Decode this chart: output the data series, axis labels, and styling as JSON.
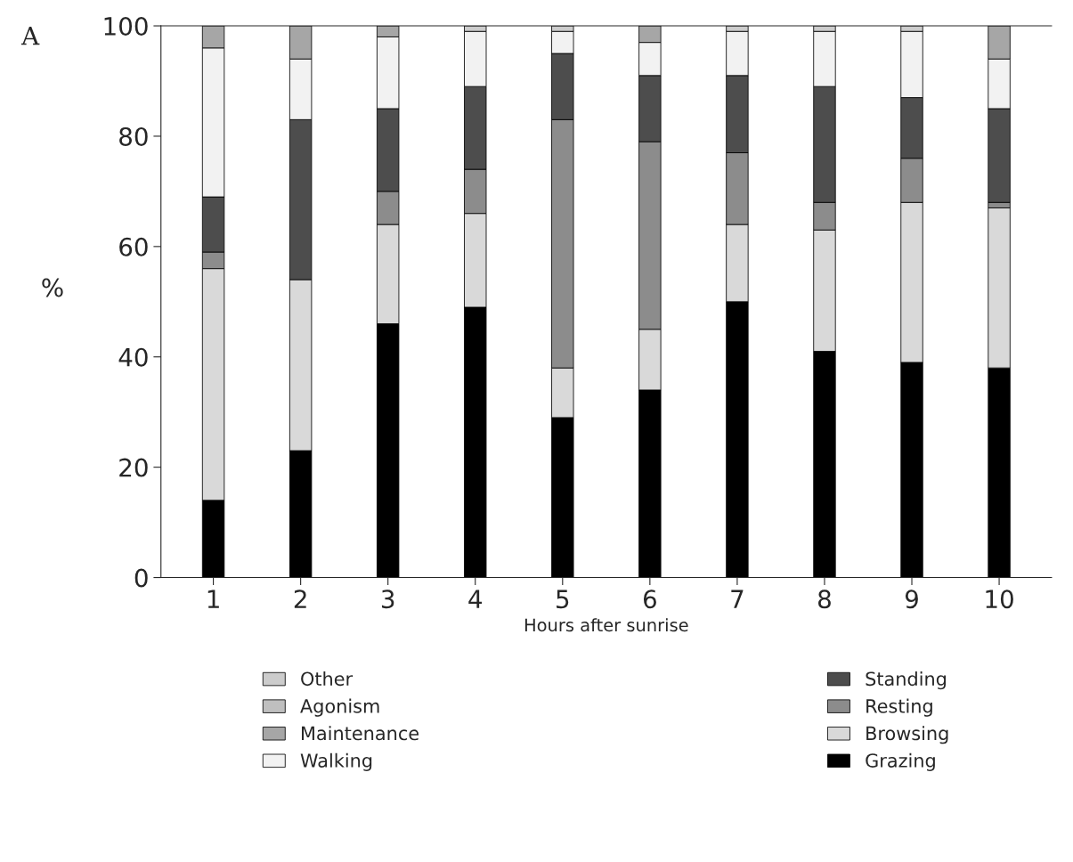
{
  "chart_data": {
    "type": "bar",
    "stacked": true,
    "xlabel": "Hours after sunrise",
    "ylabel": "%",
    "annotations": [
      "A"
    ],
    "categories": [
      "1",
      "2",
      "3",
      "4",
      "5",
      "6",
      "7",
      "8",
      "9",
      "10"
    ],
    "ylim": [
      0,
      100
    ],
    "yticks": [
      0,
      20,
      40,
      60,
      80,
      100
    ],
    "grid": false,
    "legend": "bottom",
    "series": [
      {
        "name": "Grazing",
        "color": "#000000",
        "values": [
          14,
          23,
          46,
          49,
          29,
          34,
          50,
          41,
          39,
          38
        ]
      },
      {
        "name": "Browsing",
        "color": "#d9d9d9",
        "values": [
          42,
          31,
          18,
          17,
          9,
          11,
          14,
          22,
          29,
          29
        ]
      },
      {
        "name": "Resting",
        "color": "#8c8c8c",
        "values": [
          3,
          0,
          6,
          8,
          45,
          34,
          13,
          5,
          8,
          1
        ]
      },
      {
        "name": "Standing",
        "color": "#4d4d4d",
        "values": [
          10,
          29,
          15,
          15,
          12,
          12,
          14,
          21,
          11,
          17
        ]
      },
      {
        "name": "Walking",
        "color": "#f2f2f2",
        "values": [
          27,
          11,
          13,
          10,
          4,
          6,
          8,
          10,
          12,
          9
        ]
      },
      {
        "name": "Maintenance",
        "color": "#a6a6a6",
        "values": [
          4,
          6,
          2,
          0,
          0,
          3,
          0,
          0,
          0,
          6
        ]
      },
      {
        "name": "Agonism",
        "color": "#bfbfbf",
        "values": [
          0,
          0,
          0,
          0,
          0,
          0,
          0,
          0,
          0,
          0
        ]
      },
      {
        "name": "Other",
        "color": "#cccccc",
        "values": [
          0,
          0,
          0,
          1,
          1,
          0,
          1,
          1,
          1,
          0
        ]
      }
    ]
  }
}
